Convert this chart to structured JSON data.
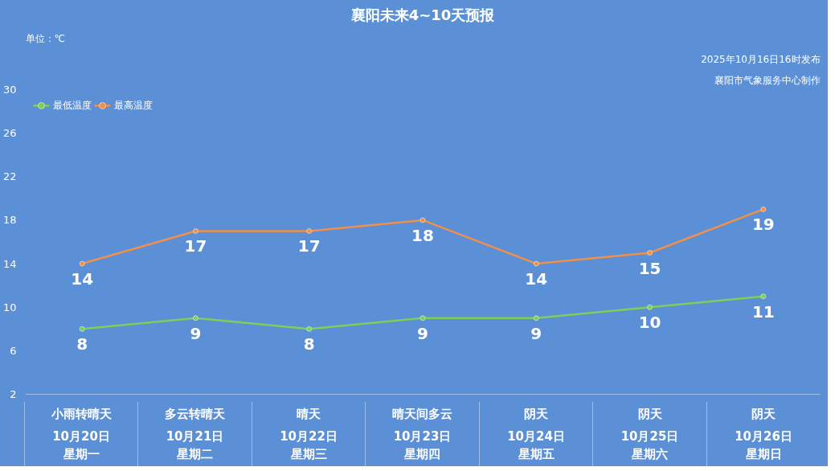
{
  "chart_data": {
    "type": "line",
    "title": "襄阳未来4~10天预报",
    "ylabel": "单位：℃",
    "annotations": [
      "2025年10月16日16时发布",
      "襄阳市气象服务中心制作"
    ],
    "categories": [
      "小雨转晴天\n10月20日星期一",
      "多云转晴天\n10月21日星期二",
      "晴天\n10月22日星期三",
      "晴天间多云\n10月23日星期四",
      "阴天\n10月24日星期五",
      "阴天\n10月25日星期六",
      "阴天\n10月26日星期日"
    ],
    "series": [
      {
        "name": "最低温度",
        "color": "#7ccf5a",
        "values": [
          8,
          9,
          8,
          9,
          9,
          10,
          11
        ]
      },
      {
        "name": "最高温度",
        "color": "#f0904a",
        "values": [
          14,
          17,
          17,
          18,
          14,
          15,
          19
        ]
      }
    ],
    "ylim": [
      2,
      30
    ],
    "yticks": [
      2,
      6,
      10,
      14,
      18,
      22,
      26,
      30
    ],
    "grid": false,
    "legend": "top left",
    "marker": "circle",
    "line_style": "solid",
    "data_labels": true
  }
}
